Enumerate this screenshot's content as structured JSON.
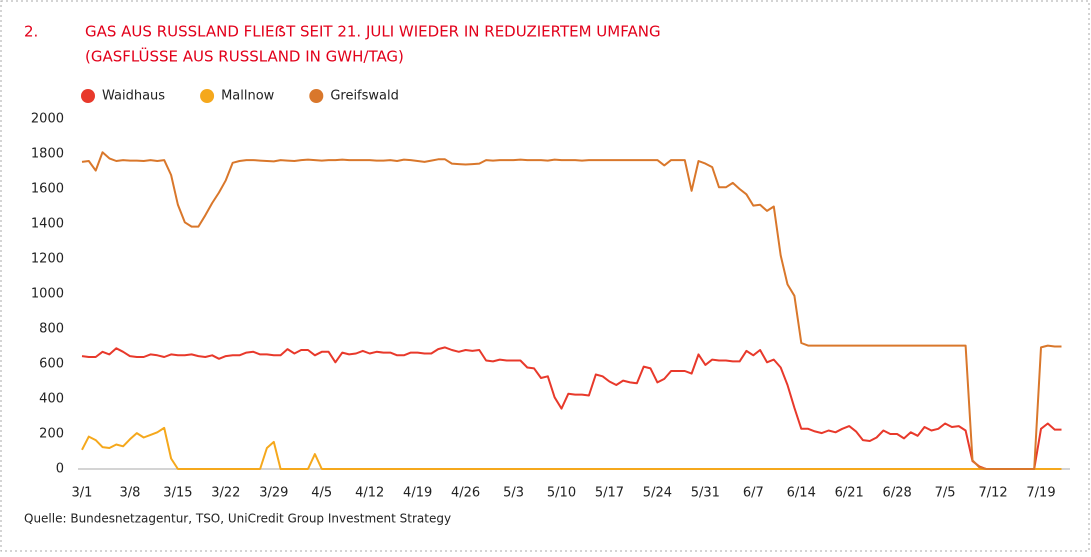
{
  "chart_data": {
    "type": "line",
    "number": "2.",
    "title": "GAS AUS RUSSLAND FLIEẞT SEIT 21. JULI WIEDER IN REDUZIERTEM UMFANG",
    "subtitle": "(GASFLÜSSE AUS RUSSLAND IN GWH/TAG)",
    "source": "Quelle: Bundesnetzagentur, TSO, UniCredit Group Investment Strategy",
    "ylim": [
      0,
      2000
    ],
    "yticks": [
      0,
      200,
      400,
      600,
      800,
      1000,
      1200,
      1400,
      1600,
      1800,
      2000
    ],
    "grid": false,
    "legend": "top-left",
    "categories": [
      "3/1",
      null,
      null,
      null,
      null,
      null,
      null,
      "3/8",
      null,
      null,
      null,
      null,
      null,
      null,
      "3/15",
      null,
      null,
      null,
      null,
      null,
      null,
      "3/22",
      null,
      null,
      null,
      null,
      null,
      null,
      "3/29",
      null,
      null,
      null,
      null,
      null,
      null,
      "4/5",
      null,
      null,
      null,
      null,
      null,
      null,
      "4/12",
      null,
      null,
      null,
      null,
      null,
      null,
      "4/19",
      null,
      null,
      null,
      null,
      null,
      null,
      "4/26",
      null,
      null,
      null,
      null,
      null,
      null,
      "5/3",
      null,
      null,
      null,
      null,
      null,
      null,
      "5/10",
      null,
      null,
      null,
      null,
      null,
      null,
      "5/17",
      null,
      null,
      null,
      null,
      null,
      null,
      "5/24",
      null,
      null,
      null,
      null,
      null,
      null,
      "5/31",
      null,
      null,
      null,
      null,
      null,
      null,
      "6/7",
      null,
      null,
      null,
      null,
      null,
      null,
      "6/14",
      null,
      null,
      null,
      null,
      null,
      null,
      "6/21",
      null,
      null,
      null,
      null,
      null,
      null,
      "6/28",
      null,
      null,
      null,
      null,
      null,
      null,
      "7/5",
      null,
      null,
      null,
      null,
      null,
      null,
      "7/12",
      null,
      null,
      null,
      null,
      null,
      null,
      "7/19",
      null,
      null,
      null
    ],
    "series": [
      {
        "name": "Waidhaus",
        "color": "#e8392b",
        "values": [
          645,
          640,
          640,
          670,
          655,
          690,
          670,
          645,
          640,
          640,
          655,
          650,
          640,
          655,
          650,
          650,
          655,
          645,
          640,
          650,
          630,
          645,
          650,
          650,
          665,
          670,
          655,
          655,
          650,
          650,
          685,
          660,
          680,
          680,
          650,
          670,
          670,
          610,
          665,
          655,
          660,
          675,
          660,
          670,
          665,
          665,
          650,
          650,
          665,
          665,
          660,
          660,
          685,
          695,
          680,
          670,
          680,
          675,
          680,
          620,
          615,
          625,
          620,
          620,
          620,
          580,
          575,
          520,
          530,
          410,
          345,
          430,
          425,
          425,
          420,
          540,
          530,
          500,
          480,
          505,
          495,
          490,
          585,
          575,
          495,
          515,
          560,
          560,
          560,
          545,
          655,
          595,
          625,
          620,
          620,
          615,
          615,
          675,
          650,
          680,
          610,
          625,
          580,
          480,
          350,
          230,
          230,
          215,
          205,
          220,
          210,
          230,
          245,
          215,
          165,
          160,
          180,
          220,
          200,
          200,
          175,
          210,
          190,
          240,
          220,
          230,
          260,
          240,
          245,
          220,
          45,
          15,
          0,
          0,
          0,
          0,
          0,
          0,
          0,
          0,
          230,
          260,
          225,
          225
        ]
      },
      {
        "name": "Mallnow",
        "color": "#f5a81c",
        "values": [
          110,
          185,
          165,
          125,
          120,
          140,
          130,
          170,
          205,
          180,
          195,
          210,
          235,
          60,
          0,
          0,
          0,
          0,
          0,
          0,
          0,
          0,
          0,
          0,
          0,
          0,
          0,
          120,
          155,
          0,
          0,
          0,
          0,
          0,
          85,
          0,
          0,
          0,
          0,
          0,
          0,
          0,
          0,
          0,
          0,
          0,
          0,
          0,
          0,
          0,
          0,
          0,
          0,
          0,
          0,
          0,
          0,
          0,
          0,
          0,
          0,
          0,
          0,
          0,
          0,
          0,
          0,
          0,
          0,
          0,
          0,
          0,
          0,
          0,
          0,
          0,
          0,
          0,
          0,
          0,
          0,
          0,
          0,
          0,
          0,
          0,
          0,
          0,
          0,
          0,
          0,
          0,
          0,
          0,
          0,
          0,
          0,
          0,
          0,
          0,
          0,
          0,
          0,
          0,
          0,
          0,
          0,
          0,
          0,
          0,
          0,
          0,
          0,
          0,
          0,
          0,
          0,
          0,
          0,
          0,
          0,
          0,
          0,
          0,
          0,
          0,
          0,
          0,
          0,
          0,
          0,
          0,
          0,
          0,
          0,
          0,
          0,
          0,
          0,
          0,
          0,
          0,
          0,
          0
        ]
      },
      {
        "name": "Greifswald",
        "color": "#d9772b",
        "values": [
          1755,
          1760,
          1705,
          1810,
          1775,
          1760,
          1765,
          1762,
          1762,
          1760,
          1765,
          1760,
          1765,
          1680,
          1510,
          1410,
          1385,
          1385,
          1450,
          1520,
          1580,
          1650,
          1750,
          1760,
          1765,
          1765,
          1762,
          1760,
          1758,
          1765,
          1762,
          1760,
          1765,
          1768,
          1765,
          1762,
          1765,
          1765,
          1768,
          1765,
          1765,
          1765,
          1765,
          1762,
          1762,
          1765,
          1760,
          1768,
          1765,
          1760,
          1755,
          1762,
          1770,
          1770,
          1745,
          1742,
          1740,
          1742,
          1745,
          1765,
          1762,
          1765,
          1765,
          1765,
          1768,
          1765,
          1765,
          1765,
          1762,
          1768,
          1765,
          1765,
          1765,
          1762,
          1765,
          1765,
          1765,
          1765,
          1765,
          1765,
          1765,
          1765,
          1765,
          1765,
          1765,
          1735,
          1765,
          1765,
          1765,
          1590,
          1760,
          1745,
          1725,
          1610,
          1610,
          1635,
          1600,
          1570,
          1505,
          1510,
          1475,
          1500,
          1220,
          1055,
          990,
          720,
          705,
          705,
          705,
          705,
          705,
          705,
          705,
          705,
          705,
          705,
          705,
          705,
          705,
          705,
          705,
          705,
          705,
          705,
          705,
          705,
          705,
          705,
          705,
          705,
          50,
          10,
          0,
          0,
          0,
          0,
          0,
          0,
          0,
          0,
          695,
          705,
          700,
          700
        ]
      }
    ]
  }
}
